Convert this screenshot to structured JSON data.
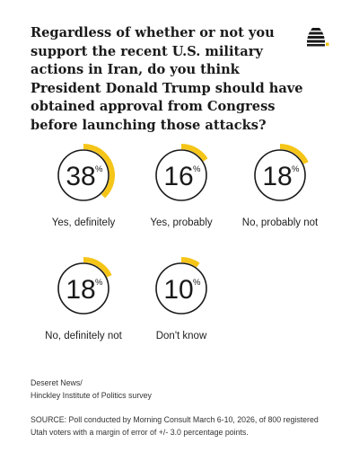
{
  "question": "Regardless of whether or not you support the recent U.S. military actions in Iran, do you think President Donald Trump should have obtained approval from Congress before launching those attacks?",
  "colors": {
    "accent": "#f5c518",
    "ring": "#1a1a1a",
    "text": "#1a1a1a"
  },
  "logo_icon": "beehive-icon",
  "chart_data": {
    "type": "donut",
    "unit_symbol": "%",
    "categories": [
      "Yes, definitely",
      "Yes, probably",
      "No, probably not",
      "No, definitely not",
      "Don't know"
    ],
    "values": [
      38,
      16,
      18,
      18,
      10
    ],
    "value_labels": [
      "38",
      "16",
      "18",
      "18",
      "10"
    ]
  },
  "credit_line1": "Deseret News/",
  "credit_line2": "Hinckley Institute of Politics survey",
  "source": "SOURCE: Poll conducted by Morning Consult March 6-10, 2026, of 800 registered Utah voters with a margin of error of +/- 3.0 percentage points."
}
